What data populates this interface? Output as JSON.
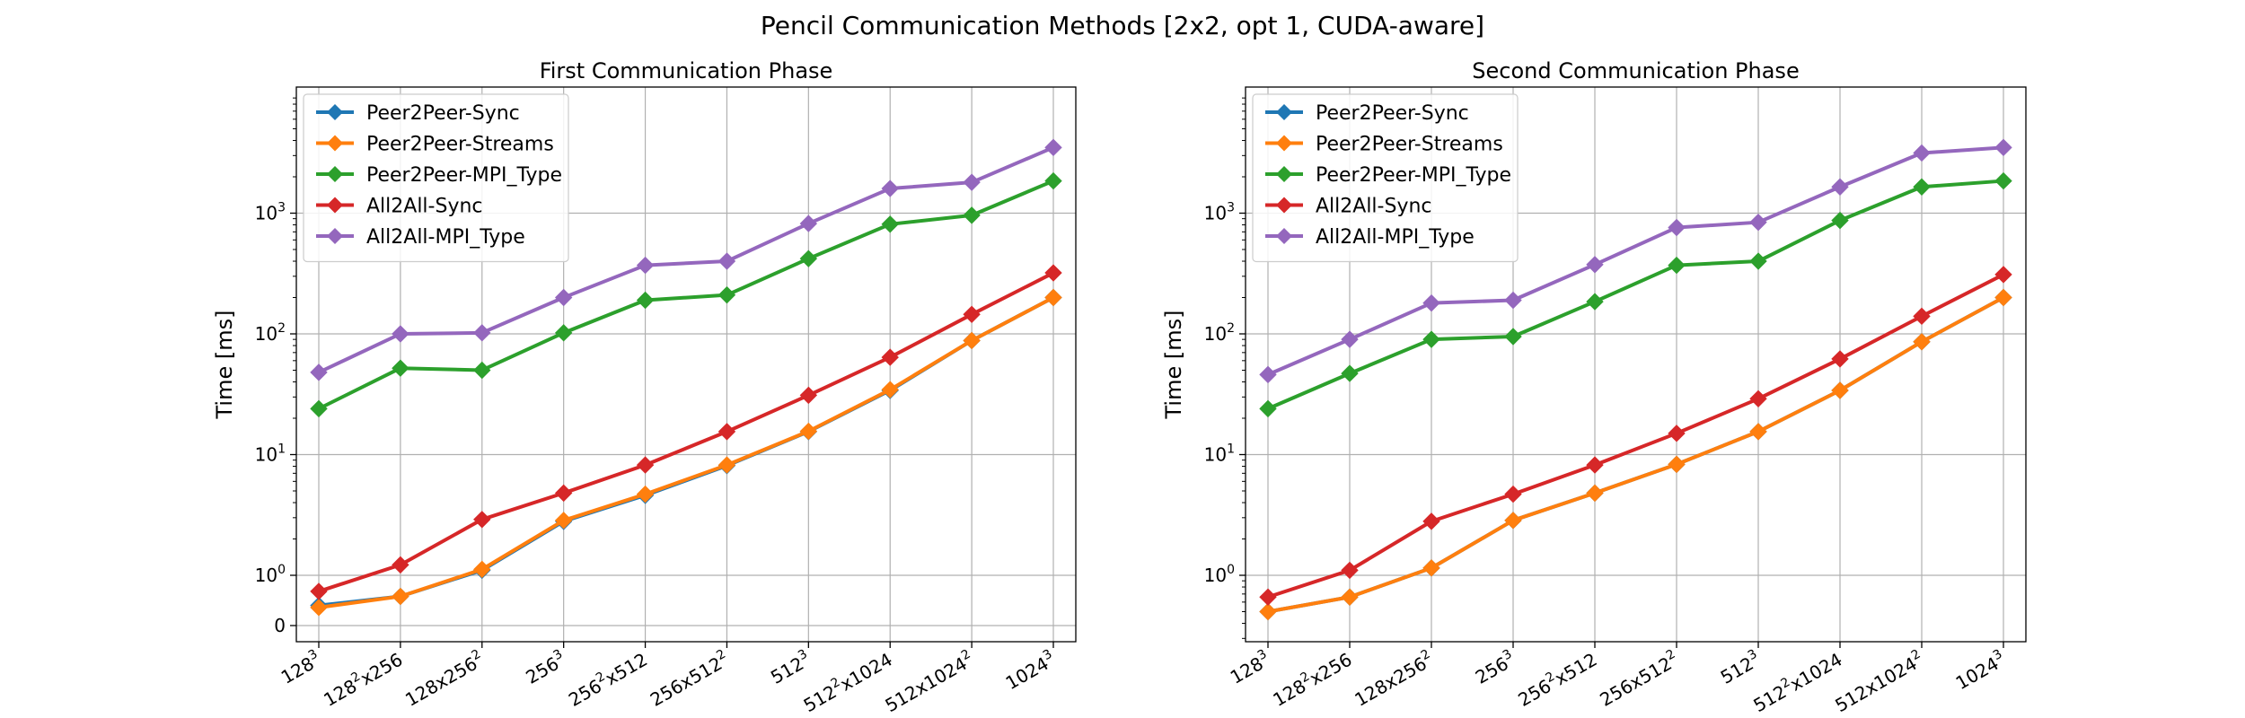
{
  "figure": {
    "title": "Pencil Communication Methods [2x2, opt 1, CUDA-aware]"
  },
  "chart_data": [
    {
      "type": "line",
      "title": "First Communication Phase",
      "xlabel": "",
      "ylabel": "Time [ms]",
      "yscale": "symlog",
      "y_ticks": [
        "0",
        "10^0",
        "10^1",
        "10^2",
        "10^3"
      ],
      "grid": true,
      "legend_placement": "top-left",
      "categories": [
        {
          "base": "128",
          "sup": "3",
          "tail": ""
        },
        {
          "base": "128",
          "sup": "2",
          "tail": "x256"
        },
        {
          "base": "128x256",
          "sup": "2",
          "tail": ""
        },
        {
          "base": "256",
          "sup": "3",
          "tail": ""
        },
        {
          "base": "256",
          "sup": "2",
          "tail": "x512"
        },
        {
          "base": "256x512",
          "sup": "2",
          "tail": ""
        },
        {
          "base": "512",
          "sup": "3",
          "tail": ""
        },
        {
          "base": "512",
          "sup": "2",
          "tail": "x1024"
        },
        {
          "base": "512x1024",
          "sup": "2",
          "tail": ""
        },
        {
          "base": "1024",
          "sup": "3",
          "tail": ""
        }
      ],
      "series": [
        {
          "name": "Peer2Peer-Sync",
          "color": "#1f77b4",
          "values": [
            0.4,
            0.58,
            1.1,
            2.8,
            4.6,
            8.1,
            15.5,
            34,
            88,
            200
          ]
        },
        {
          "name": "Peer2Peer-Streams",
          "color": "#ff7f0e",
          "values": [
            0.36,
            0.58,
            1.12,
            2.85,
            4.7,
            8.2,
            15.6,
            34.5,
            88,
            200
          ]
        },
        {
          "name": "Peer2Peer-MPI_Type",
          "color": "#2ca02c",
          "values": [
            24,
            52,
            50,
            102,
            190,
            210,
            420,
            810,
            960,
            1850
          ]
        },
        {
          "name": "All2All-Sync",
          "color": "#d62728",
          "values": [
            0.68,
            1.22,
            2.9,
            4.8,
            8.2,
            15.5,
            31,
            64,
            145,
            320
          ]
        },
        {
          "name": "All2All-MPI_Type",
          "color": "#9467bd",
          "values": [
            48,
            100,
            102,
            200,
            370,
            400,
            820,
            1600,
            1800,
            3500
          ]
        }
      ]
    },
    {
      "type": "line",
      "title": "Second Communication Phase",
      "xlabel": "",
      "ylabel": "Time [ms]",
      "yscale": "log",
      "y_ticks": [
        "10^0",
        "10^1",
        "10^2",
        "10^3"
      ],
      "grid": true,
      "legend_placement": "top-left",
      "categories": [
        {
          "base": "128",
          "sup": "3",
          "tail": ""
        },
        {
          "base": "128",
          "sup": "2",
          "tail": "x256"
        },
        {
          "base": "128x256",
          "sup": "2",
          "tail": ""
        },
        {
          "base": "256",
          "sup": "3",
          "tail": ""
        },
        {
          "base": "256",
          "sup": "2",
          "tail": "x512"
        },
        {
          "base": "256x512",
          "sup": "2",
          "tail": ""
        },
        {
          "base": "512",
          "sup": "3",
          "tail": ""
        },
        {
          "base": "512",
          "sup": "2",
          "tail": "x1024"
        },
        {
          "base": "512x1024",
          "sup": "2",
          "tail": ""
        },
        {
          "base": "1024",
          "sup": "3",
          "tail": ""
        }
      ],
      "series": [
        {
          "name": "Peer2Peer-Sync",
          "color": "#1f77b4",
          "values": [
            0.5,
            0.66,
            1.15,
            2.85,
            4.8,
            8.3,
            15.5,
            34,
            86,
            200
          ]
        },
        {
          "name": "Peer2Peer-Streams",
          "color": "#ff7f0e",
          "values": [
            0.5,
            0.66,
            1.15,
            2.85,
            4.8,
            8.3,
            15.5,
            34,
            86,
            200
          ]
        },
        {
          "name": "Peer2Peer-MPI_Type",
          "color": "#2ca02c",
          "values": [
            24,
            47,
            90,
            95,
            185,
            370,
            400,
            870,
            1650,
            1850
          ]
        },
        {
          "name": "All2All-Sync",
          "color": "#d62728",
          "values": [
            0.66,
            1.1,
            2.8,
            4.7,
            8.2,
            15,
            29,
            62,
            140,
            310
          ]
        },
        {
          "name": "All2All-MPI_Type",
          "color": "#9467bd",
          "values": [
            46,
            90,
            180,
            190,
            375,
            760,
            840,
            1650,
            3150,
            3500
          ]
        }
      ]
    }
  ]
}
